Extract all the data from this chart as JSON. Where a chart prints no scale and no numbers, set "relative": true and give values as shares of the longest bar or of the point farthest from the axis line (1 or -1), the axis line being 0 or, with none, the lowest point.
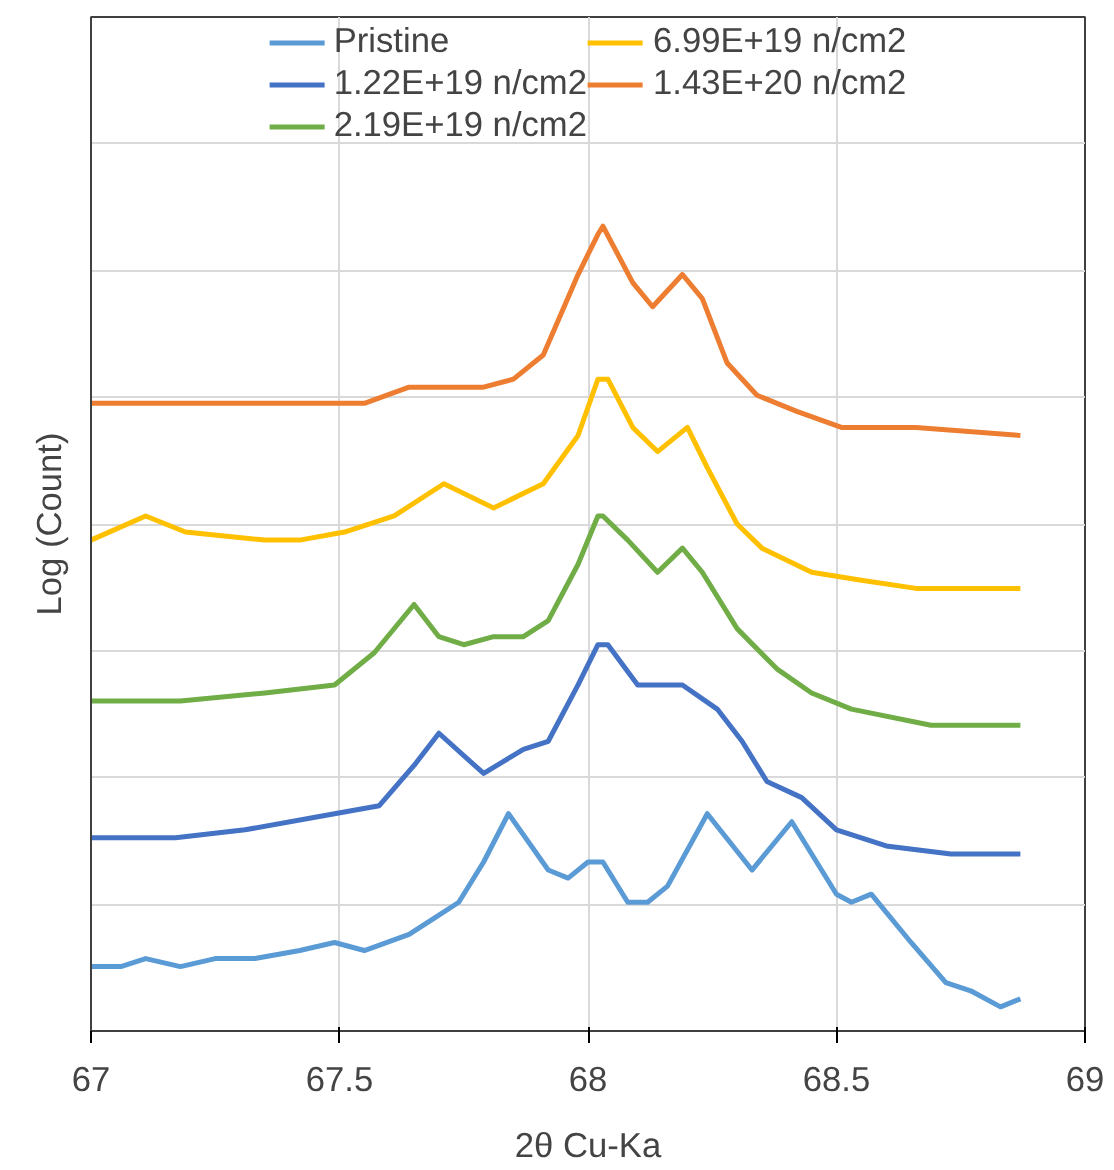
{
  "chart_data": {
    "type": "line",
    "xlabel": "2θ Cu-Ka",
    "ylabel": "Log (Count)",
    "relative": true,
    "xlim": [
      67,
      69
    ],
    "xticks": [
      67,
      67.5,
      68,
      68.5,
      69
    ],
    "tick_labels": "x",
    "grid": true,
    "legend": "top",
    "marker": "none",
    "line_style": "solid",
    "series": [
      {
        "name": "Pristine",
        "color": "#5b9bd5",
        "x": [
          67.0,
          67.06,
          67.11,
          67.18,
          67.25,
          67.33,
          67.42,
          67.49,
          67.55,
          67.64,
          67.69,
          67.74,
          67.79,
          67.84,
          67.92,
          67.96,
          68.0,
          68.03,
          68.08,
          68.12,
          68.16,
          68.24,
          68.33,
          68.41,
          68.5,
          68.53,
          68.57,
          68.65,
          68.72,
          68.77,
          68.83,
          68.87
        ],
        "values": [
          0.08,
          0.08,
          0.09,
          0.08,
          0.09,
          0.09,
          0.1,
          0.11,
          0.1,
          0.12,
          0.14,
          0.16,
          0.21,
          0.27,
          0.2,
          0.19,
          0.21,
          0.21,
          0.16,
          0.16,
          0.18,
          0.27,
          0.2,
          0.26,
          0.17,
          0.16,
          0.17,
          0.11,
          0.06,
          0.05,
          0.03,
          0.04
        ]
      },
      {
        "name": "1.22E+19 n/cm2",
        "color": "#4472c4",
        "x": [
          67.0,
          67.17,
          67.31,
          67.49,
          67.58,
          67.65,
          67.7,
          67.79,
          67.87,
          67.92,
          67.98,
          68.02,
          68.04,
          68.1,
          68.19,
          68.26,
          68.31,
          68.36,
          68.43,
          68.5,
          68.6,
          68.73,
          68.87
        ],
        "values": [
          0.24,
          0.24,
          0.25,
          0.27,
          0.28,
          0.33,
          0.37,
          0.32,
          0.35,
          0.36,
          0.43,
          0.48,
          0.48,
          0.43,
          0.43,
          0.4,
          0.36,
          0.31,
          0.29,
          0.25,
          0.23,
          0.22,
          0.22
        ]
      },
      {
        "name": "2.19E+19 n/cm2",
        "color": "#70ad47",
        "x": [
          67.0,
          67.18,
          67.35,
          67.49,
          67.57,
          67.65,
          67.7,
          67.75,
          67.81,
          67.87,
          67.92,
          67.98,
          68.02,
          68.03,
          68.08,
          68.14,
          68.19,
          68.23,
          68.3,
          68.38,
          68.45,
          68.53,
          68.69,
          68.87
        ],
        "values": [
          0.41,
          0.41,
          0.42,
          0.43,
          0.47,
          0.53,
          0.49,
          0.48,
          0.49,
          0.49,
          0.51,
          0.58,
          0.64,
          0.64,
          0.61,
          0.57,
          0.6,
          0.57,
          0.5,
          0.45,
          0.42,
          0.4,
          0.38,
          0.38
        ]
      },
      {
        "name": "6.99E+19 n/cm2",
        "color": "#ffc000",
        "x": [
          67.0,
          67.11,
          67.19,
          67.35,
          67.42,
          67.51,
          67.61,
          67.71,
          67.81,
          67.91,
          67.98,
          68.02,
          68.04,
          68.09,
          68.14,
          68.2,
          68.24,
          68.3,
          68.35,
          68.45,
          68.55,
          68.66,
          68.87
        ],
        "values": [
          0.61,
          0.64,
          0.62,
          0.61,
          0.61,
          0.62,
          0.64,
          0.68,
          0.65,
          0.68,
          0.74,
          0.81,
          0.81,
          0.75,
          0.72,
          0.75,
          0.7,
          0.63,
          0.6,
          0.57,
          0.56,
          0.55,
          0.55
        ]
      },
      {
        "name": "1.43E+20 n/cm2",
        "color": "#ed7d31",
        "x": [
          67.0,
          67.25,
          67.54,
          67.55,
          67.64,
          67.79,
          67.85,
          67.91,
          67.98,
          68.02,
          68.03,
          68.09,
          68.13,
          68.19,
          68.23,
          68.28,
          68.34,
          68.42,
          68.51,
          68.66,
          68.87
        ],
        "values": [
          0.78,
          0.78,
          0.78,
          0.78,
          0.8,
          0.8,
          0.81,
          0.84,
          0.94,
          0.99,
          1.0,
          0.93,
          0.9,
          0.94,
          0.91,
          0.83,
          0.79,
          0.77,
          0.75,
          0.75,
          0.74
        ]
      }
    ]
  }
}
